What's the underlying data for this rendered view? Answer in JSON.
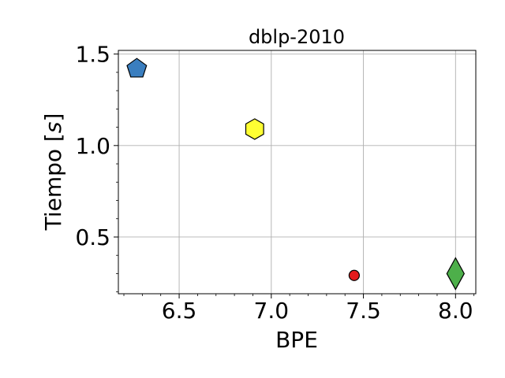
{
  "chart_data": {
    "type": "scatter",
    "title": "dblp-2010",
    "xlabel": "BPE",
    "ylabel": "Tiempo [s]",
    "xlim": [
      6.17,
      8.11
    ],
    "ylim": [
      0.19,
      1.52
    ],
    "xticks": [
      "6.5",
      "7.0",
      "7.5",
      "8.0"
    ],
    "yticks": [
      "0.5",
      "1.0",
      "1.5"
    ],
    "grid": true,
    "series": [
      {
        "x": 6.27,
        "y": 1.42,
        "marker": "pentagon",
        "color": "#3a7ebf"
      },
      {
        "x": 6.91,
        "y": 1.09,
        "marker": "hexagon",
        "color": "#ffff33"
      },
      {
        "x": 7.45,
        "y": 0.29,
        "marker": "circle",
        "color": "#e41a1c"
      },
      {
        "x": 8.0,
        "y": 0.3,
        "marker": "diamond",
        "color": "#4daf4a"
      }
    ]
  }
}
